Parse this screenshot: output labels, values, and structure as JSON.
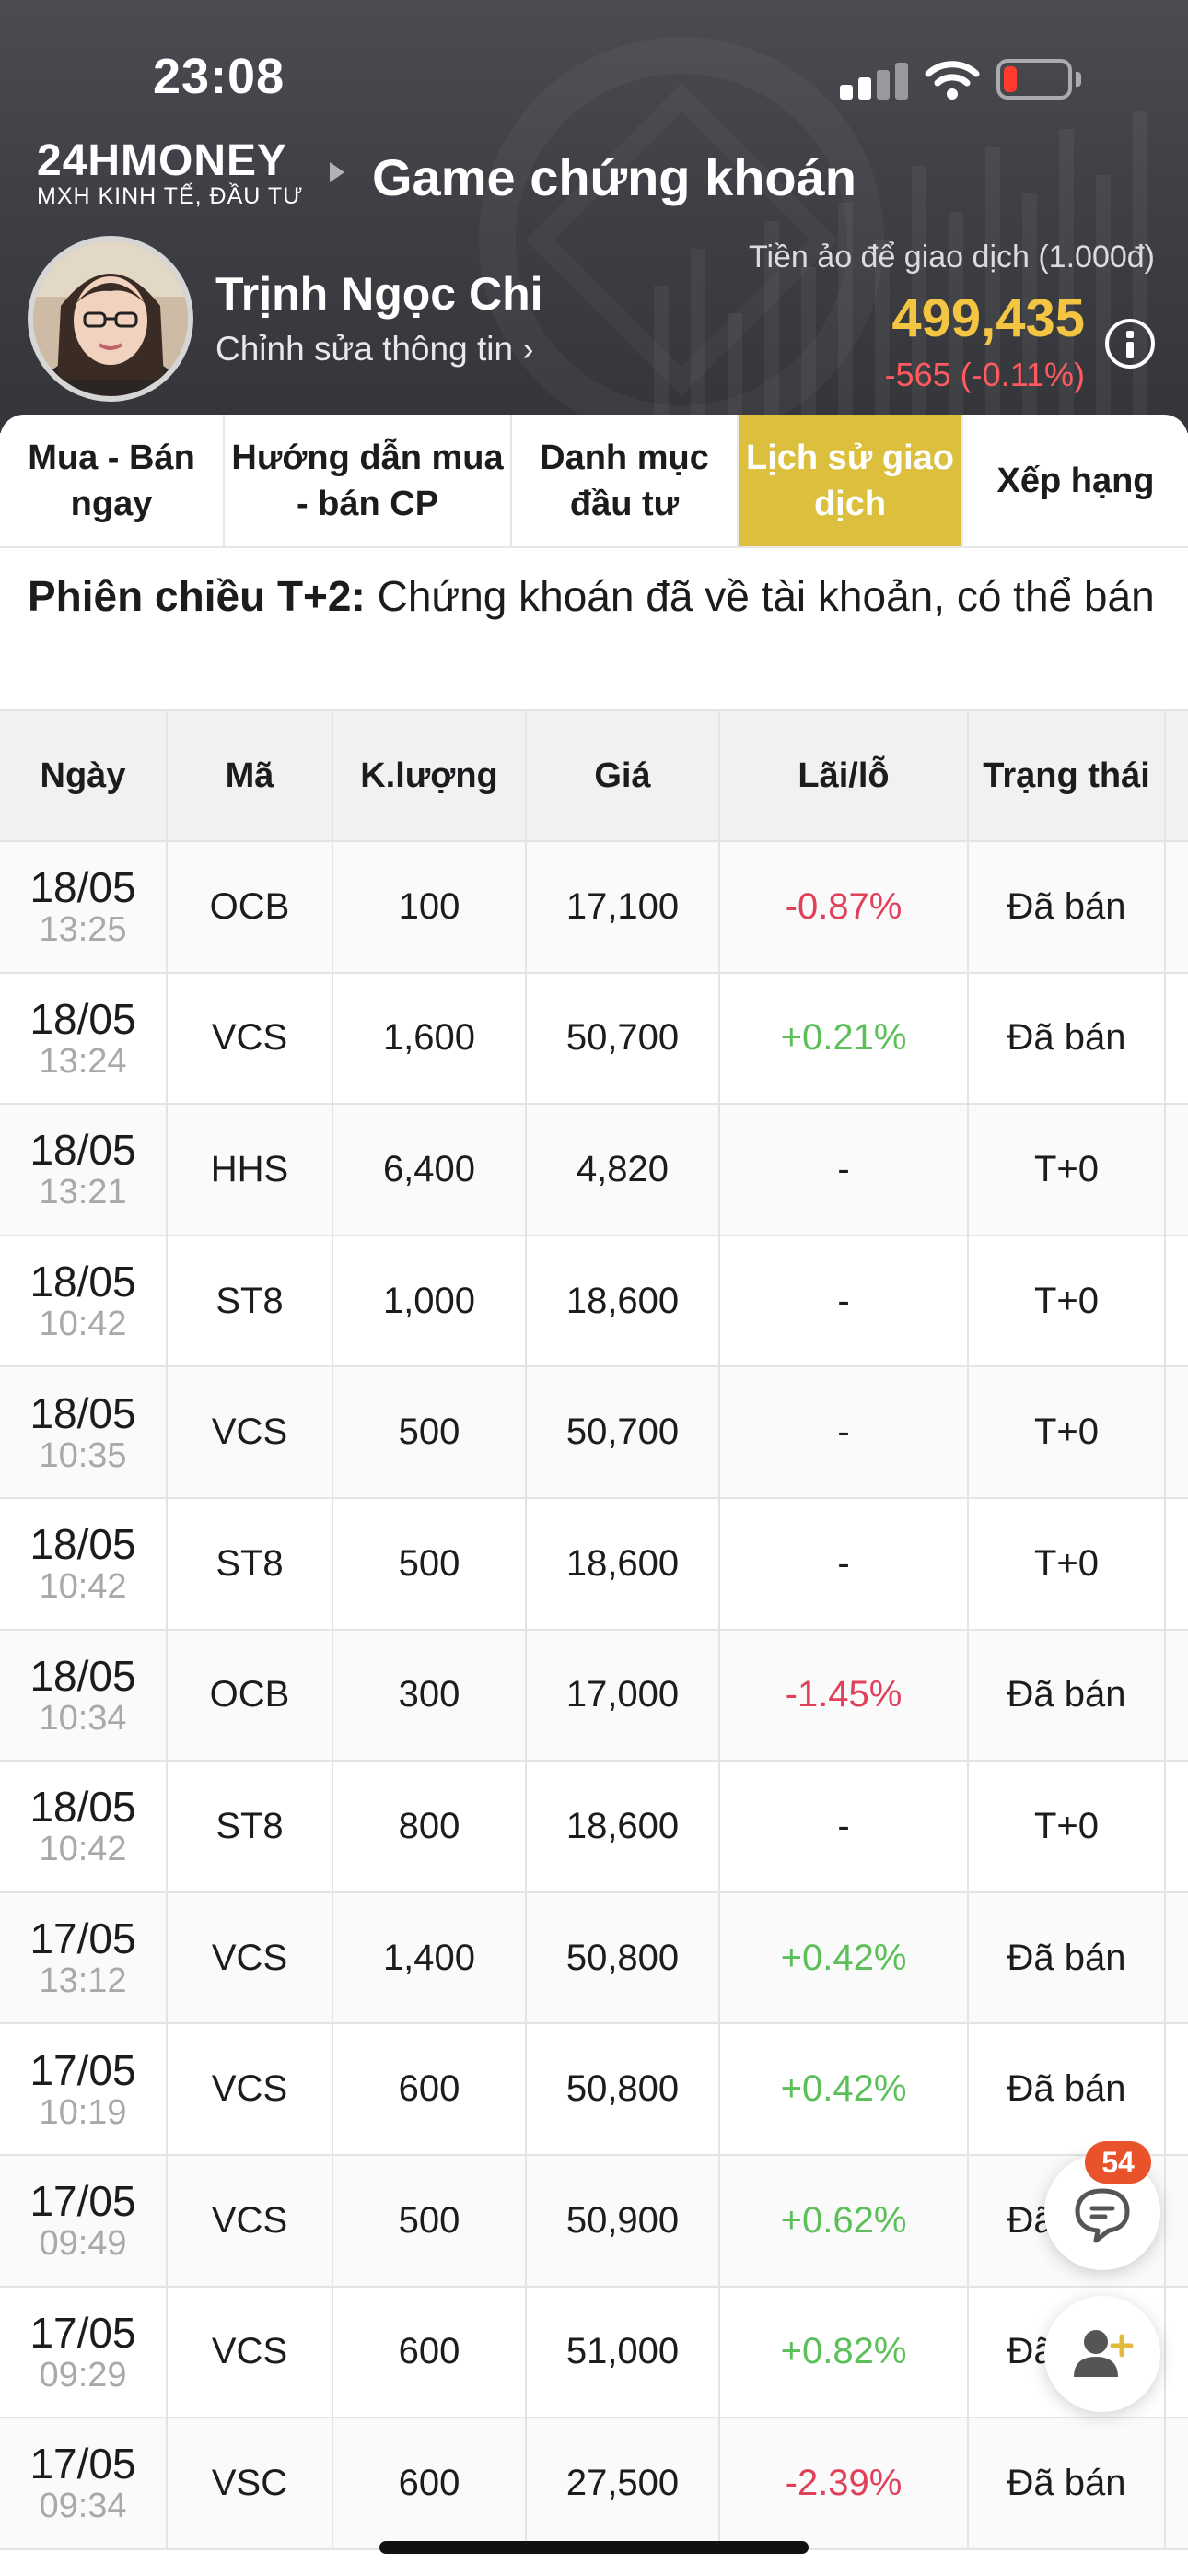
{
  "status_bar": {
    "time": "23:08"
  },
  "header": {
    "logo_main": "24HMONEY",
    "logo_sub": "MXH KINH TẾ, ĐẦU TƯ",
    "title": "Game chứng khoán"
  },
  "profile": {
    "name": "Trịnh Ngọc Chi",
    "edit_link": "Chỉnh sửa thông tin ›",
    "balance_label": "Tiền ảo để giao dịch (1.000đ)",
    "balance_value": "499,435",
    "balance_change": "-565 (-0.11%)"
  },
  "tabs": [
    {
      "label": "Mua - Bán ngay",
      "active": false
    },
    {
      "label": "Hướng dẫn mua - bán CP",
      "active": false
    },
    {
      "label": "Danh mục đầu tư",
      "active": false
    },
    {
      "label": "Lịch sử giao dịch",
      "active": true
    },
    {
      "label": "Xếp hạng",
      "active": false
    }
  ],
  "session_note": {
    "bold": "Phiên chiều T+2:",
    "text": " Chứng khoán đã về tài khoản, có thể bán"
  },
  "table": {
    "headers": {
      "date": "Ngày",
      "code": "Mã",
      "qty": "K.lượng",
      "price": "Giá",
      "pl": "Lãi/lỗ",
      "status": "Trạng thái"
    },
    "rows": [
      {
        "date": "18/05",
        "time": "13:25",
        "code": "OCB",
        "qty": "100",
        "price": "17,100",
        "pl": "-0.87%",
        "status": "Đã bán"
      },
      {
        "date": "18/05",
        "time": "13:24",
        "code": "VCS",
        "qty": "1,600",
        "price": "50,700",
        "pl": "+0.21%",
        "status": "Đã bán"
      },
      {
        "date": "18/05",
        "time": "13:21",
        "code": "HHS",
        "qty": "6,400",
        "price": "4,820",
        "pl": "-",
        "status": "T+0"
      },
      {
        "date": "18/05",
        "time": "10:42",
        "code": "ST8",
        "qty": "1,000",
        "price": "18,600",
        "pl": "-",
        "status": "T+0"
      },
      {
        "date": "18/05",
        "time": "10:35",
        "code": "VCS",
        "qty": "500",
        "price": "50,700",
        "pl": "-",
        "status": "T+0"
      },
      {
        "date": "18/05",
        "time": "10:42",
        "code": "ST8",
        "qty": "500",
        "price": "18,600",
        "pl": "-",
        "status": "T+0"
      },
      {
        "date": "18/05",
        "time": "10:34",
        "code": "OCB",
        "qty": "300",
        "price": "17,000",
        "pl": "-1.45%",
        "status": "Đã bán"
      },
      {
        "date": "18/05",
        "time": "10:42",
        "code": "ST8",
        "qty": "800",
        "price": "18,600",
        "pl": "-",
        "status": "T+0"
      },
      {
        "date": "17/05",
        "time": "13:12",
        "code": "VCS",
        "qty": "1,400",
        "price": "50,800",
        "pl": "+0.42%",
        "status": "Đã bán"
      },
      {
        "date": "17/05",
        "time": "10:19",
        "code": "VCS",
        "qty": "600",
        "price": "50,800",
        "pl": "+0.42%",
        "status": "Đã bán"
      },
      {
        "date": "17/05",
        "time": "09:49",
        "code": "VCS",
        "qty": "500",
        "price": "50,900",
        "pl": "+0.62%",
        "status": "Đã bán"
      },
      {
        "date": "17/05",
        "time": "09:29",
        "code": "VCS",
        "qty": "600",
        "price": "51,000",
        "pl": "+0.82%",
        "status": "Đã bán"
      },
      {
        "date": "17/05",
        "time": "09:34",
        "code": "VSC",
        "qty": "600",
        "price": "27,500",
        "pl": "-2.39%",
        "status": "Đã bán"
      }
    ]
  },
  "chat_badge": "54",
  "colors": {
    "accent_tab": "#dcbf3d",
    "balance": "#f4c542",
    "negative": "#e0405a",
    "positive": "#5cbf5a",
    "badge": "#e8532c"
  },
  "icons": [
    "signal-icon",
    "wifi-icon",
    "battery-icon",
    "info-icon",
    "chat-icon",
    "add-user-icon"
  ]
}
